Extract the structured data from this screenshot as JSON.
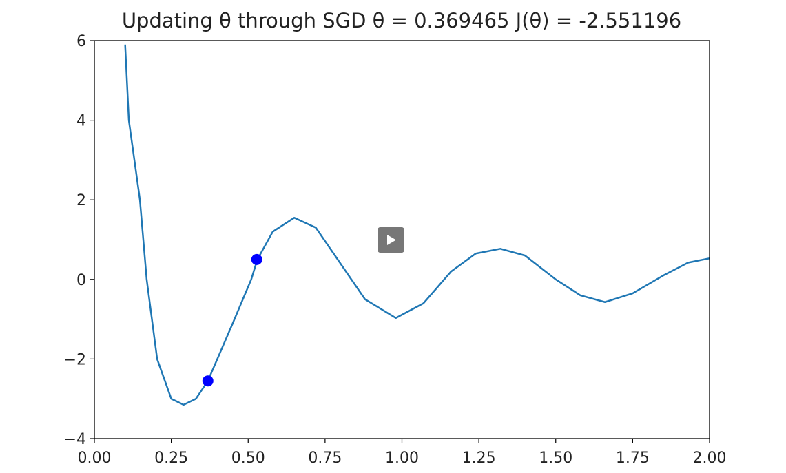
{
  "chart_data": {
    "type": "line",
    "title": "Updating θ through SGD θ = 0.369465 J(θ) = -2.551196",
    "xlim": [
      0,
      2
    ],
    "ylim": [
      -4,
      6
    ],
    "xticks": [
      {
        "value": 0,
        "label": "0.00"
      },
      {
        "value": 0.25,
        "label": "0.25"
      },
      {
        "value": 0.5,
        "label": "0.50"
      },
      {
        "value": 0.75,
        "label": "0.75"
      },
      {
        "value": 1,
        "label": "1.00"
      },
      {
        "value": 1.25,
        "label": "1.25"
      },
      {
        "value": 1.5,
        "label": "1.50"
      },
      {
        "value": 1.75,
        "label": "1.75"
      },
      {
        "value": 2,
        "label": "2.00"
      }
    ],
    "yticks": [
      {
        "value": -4,
        "label": "−4"
      },
      {
        "value": -2,
        "label": "−2"
      },
      0,
      2,
      4,
      6
    ],
    "series": [
      {
        "type": "line",
        "color": "#1f77b4",
        "x": [
          0.1,
          0.112,
          0.148,
          0.17,
          0.204,
          0.25,
          0.29,
          0.33,
          0.369,
          0.45,
          0.51,
          0.53,
          0.58,
          0.65,
          0.72,
          0.8,
          0.88,
          0.98,
          1.07,
          1.16,
          1.24,
          1.32,
          1.4,
          1.5,
          1.58,
          1.66,
          1.75,
          1.85,
          1.93,
          2.0
        ],
        "values": [
          5.9,
          4,
          2,
          0,
          -2,
          -3,
          -3.15,
          -3.0,
          -2.55,
          -1.1,
          0,
          0.5,
          1.2,
          1.55,
          1.3,
          0.4,
          -0.5,
          -0.97,
          -0.6,
          0.2,
          0.65,
          0.77,
          0.6,
          0.0,
          -0.4,
          -0.57,
          -0.35,
          0.1,
          0.42,
          0.53
        ]
      },
      {
        "type": "scatter",
        "color": "#0000ff",
        "x": [
          0.369,
          0.528
        ],
        "values": [
          -2.55,
          0.5
        ]
      }
    ]
  }
}
